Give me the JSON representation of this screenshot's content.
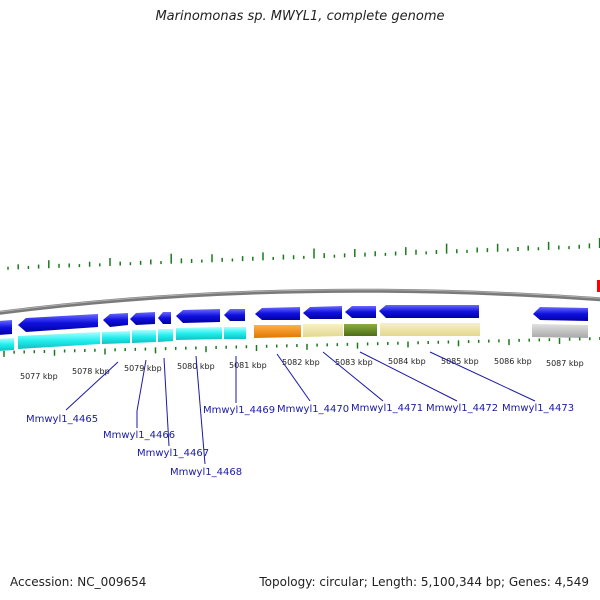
{
  "title": "Marinomonas sp. MWYL1, complete genome",
  "footer": {
    "accession": "Accession: NC_009654",
    "summary": "Topology: circular; Length: 5,100,344 bp; Genes: 4,549"
  },
  "scale_labels": [
    "5077 kbp",
    "5078 kbp",
    "5079 kbp",
    "5080 kbp",
    "5081 kbp",
    "5082 kbp",
    "5083 kbp",
    "5084 kbp",
    "5085 kbp",
    "5086 kbp",
    "5087 kbp"
  ],
  "gene_labels": [
    "Mmwyl1_4465",
    "Mmwyl1_4466",
    "Mmwyl1_4467",
    "Mmwyl1_4468",
    "Mmwyl1_4469",
    "Mmwyl1_4470",
    "Mmwyl1_4471",
    "Mmwyl1_4472",
    "Mmwyl1_4473"
  ],
  "colors": {
    "cds_arrow": "#1010e0",
    "cog_cyan": "#22eeee",
    "cog_orange": "#ff8c00",
    "cog_khaki": "#eee8aa",
    "cog_olive": "#6b8e23",
    "cog_gray": "#c8c8c8",
    "gc_tick": "#1a7a1a",
    "backbone": "#808080",
    "label_blue": "#1a1aa8",
    "marker_red": "#ff0000"
  }
}
